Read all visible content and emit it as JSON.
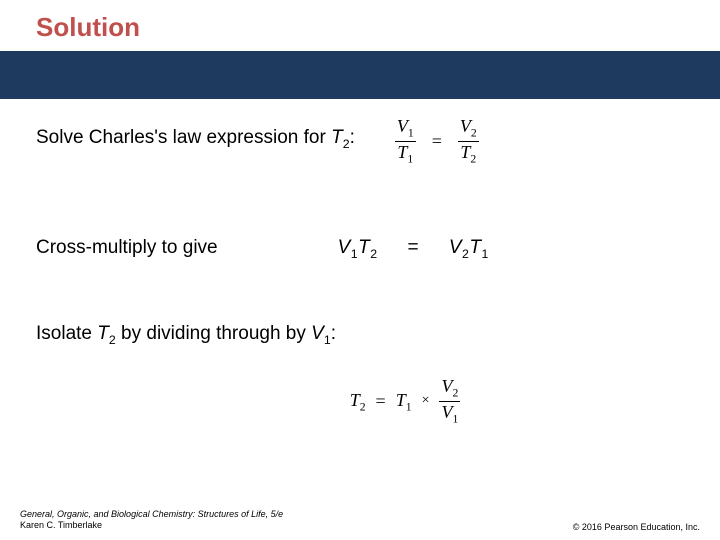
{
  "title": {
    "text": "Solution",
    "color": "#c0504d"
  },
  "band": {
    "color": "#1f3a5f"
  },
  "step1": {
    "prefix": "Solve Charles's law expression for ",
    "var": "T",
    "sub": "2",
    "suffix": ":"
  },
  "eq1": {
    "left_num_v": "V",
    "left_num_sub": "1",
    "left_den_v": "T",
    "left_den_sub": "1",
    "eq": "=",
    "right_num_v": "V",
    "right_num_sub": "2",
    "right_den_v": "T",
    "right_den_sub": "2"
  },
  "step2": {
    "text": "Cross-multiply to give"
  },
  "eq2": {
    "l_v1": "V",
    "l_s1": "1",
    "l_v2": "T",
    "l_s2": "2",
    "eq": "=",
    "r_v1": "V",
    "r_s1": "2",
    "r_v2": "T",
    "r_s2": "1"
  },
  "step3": {
    "prefix": "Isolate ",
    "var": "T",
    "sub": "2",
    "mid": " by dividing through by ",
    "var2": "V",
    "sub2": "1",
    "suffix": ":"
  },
  "eq3": {
    "lhs_v": "T",
    "lhs_sub": "2",
    "eq": "=",
    "t_v": "T",
    "t_sub": "1",
    "times": "×",
    "num_v": "V",
    "num_sub": "2",
    "den_v": "V",
    "den_sub": "1"
  },
  "footer": {
    "left_line1": "General, Organic, and Biological Chemistry: Structures of Life, 5/e",
    "left_line2": "Karen C. Timberlake",
    "right": "© 2016 Pearson Education, Inc."
  }
}
